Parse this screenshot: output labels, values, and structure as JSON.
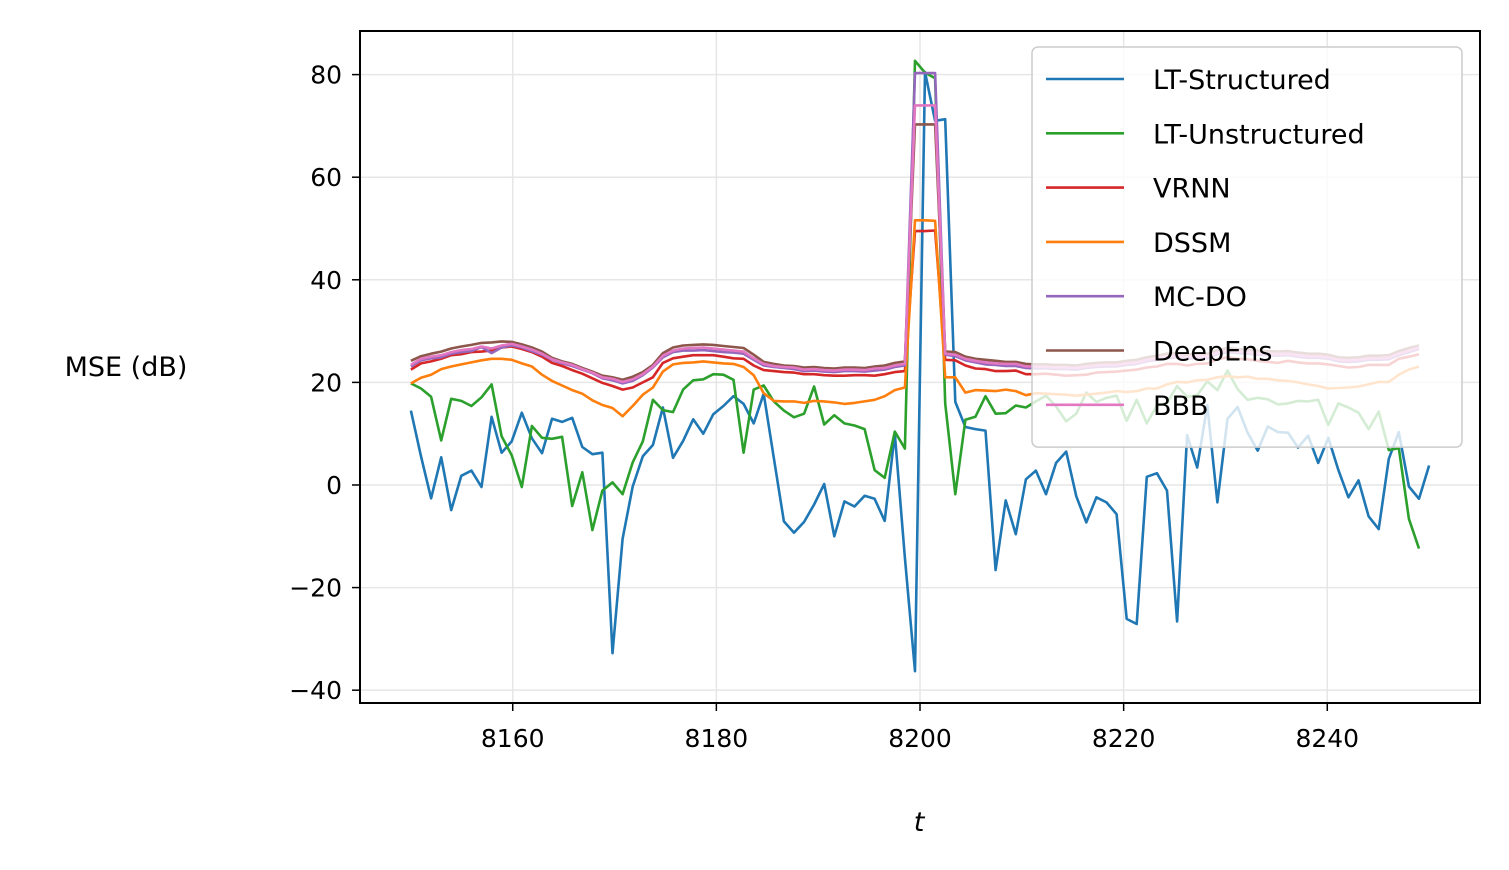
{
  "chart_data": {
    "type": "line",
    "xlabel": "t",
    "ylabel": "MSE (dB)",
    "xlim": [
      8145,
      8255
    ],
    "ylim": [
      -42.5,
      88.5
    ],
    "xticks": [
      8160,
      8180,
      8200,
      8220,
      8240
    ],
    "yticks": [
      -40,
      -20,
      0,
      20,
      40,
      60,
      80
    ],
    "xtick_labels": [
      "8160",
      "8180",
      "8200",
      "8220",
      "8240"
    ],
    "ytick_labels": [
      "−40",
      "−20",
      "0",
      "20",
      "40",
      "60",
      "80"
    ],
    "grid": true,
    "legend_position": "upper-right",
    "x_start": 8150,
    "x_end": 8250,
    "series": [
      {
        "name": "LT-Structured",
        "color": "#1f77b4",
        "values": [
          14.5,
          5.6,
          -2.6,
          5.4,
          -4.9,
          1.8,
          2.8,
          -0.4,
          13.3,
          6.3,
          8.5,
          14.1,
          9.1,
          6.2,
          12.9,
          12.3,
          13.1,
          7.4,
          6.0,
          6.3,
          -32.8,
          -10.5,
          -0.3,
          5.6,
          7.8,
          15.1,
          5.3,
          8.6,
          12.8,
          10.0,
          13.8,
          15.4,
          17.3,
          15.8,
          12.0,
          17.8,
          5.3,
          -7.1,
          -9.3,
          -7.2,
          -3.8,
          0.2,
          -10.0,
          -3.2,
          -4.2,
          -2.1,
          -2.7,
          -7.0,
          10.0,
          -14.2,
          -36.3,
          80.5,
          71.0,
          71.3,
          16.2,
          11.3,
          10.9,
          10.6,
          -16.6,
          -3.0,
          -9.6,
          1.1,
          2.8,
          -1.8,
          4.3,
          6.5,
          -2.2,
          -7.3,
          -2.4,
          -3.4,
          -5.7,
          -26.1,
          -27.1,
          1.6,
          2.3,
          -1.1,
          -26.6,
          9.7,
          3.4,
          15.6,
          -3.4,
          12.9,
          15.2,
          10.2,
          6.7,
          11.4,
          10.3,
          10.2,
          7.3,
          9.6,
          4.3,
          9.2,
          2.9,
          -2.4,
          0.9,
          -6.1,
          -8.6,
          5.1,
          10.3,
          -0.3,
          -2.7,
          3.8
        ]
      },
      {
        "name": "LT-Unstructured",
        "color": "#2ca02c",
        "values": [
          19.8,
          18.8,
          17.2,
          8.7,
          16.8,
          16.4,
          15.4,
          17.1,
          19.6,
          9.5,
          5.8,
          -0.4,
          11.5,
          9.2,
          9.0,
          9.4,
          -4.1,
          2.5,
          -8.8,
          -1.1,
          0.5,
          -1.8,
          4.4,
          8.5,
          16.6,
          14.6,
          14.2,
          18.6,
          20.4,
          20.6,
          21.6,
          21.5,
          20.5,
          6.3,
          18.6,
          19.4,
          16.3,
          14.5,
          13.2,
          13.9,
          19.2,
          11.8,
          13.6,
          12.0,
          11.6,
          10.9,
          2.9,
          1.4,
          10.4,
          7.1,
          82.7,
          80.4,
          79.3,
          15.9,
          -1.8,
          12.7,
          13.3,
          17.3,
          13.9,
          14.0,
          15.5,
          15.1,
          16.3,
          17.4,
          15.3,
          12.4,
          13.9,
          18.0,
          16.2,
          17.0,
          17.4,
          12.5,
          16.6,
          12.0,
          15.5,
          16.0,
          19.3,
          17.2,
          17.5,
          20.2,
          18.5,
          22.3,
          18.7,
          16.6,
          17.0,
          16.7,
          15.7,
          15.9,
          16.4,
          16.3,
          16.6,
          11.7,
          15.9,
          15.1,
          14.1,
          10.9,
          14.3,
          6.8,
          7.2,
          -6.6,
          -12.4
        ]
      },
      {
        "name": "VRNN",
        "color": "#d62728",
        "values": [
          22.5,
          23.7,
          24.1,
          24.6,
          25.3,
          25.5,
          25.9,
          26.0,
          26.2,
          26.8,
          27.0,
          26.5,
          25.9,
          25.0,
          23.8,
          23.2,
          22.4,
          21.7,
          20.8,
          19.9,
          19.3,
          18.6,
          19.0,
          20.0,
          21.0,
          23.8,
          24.7,
          25.0,
          25.3,
          25.3,
          25.3,
          25.0,
          24.7,
          24.6,
          23.3,
          22.4,
          22.2,
          22.0,
          21.9,
          21.6,
          21.6,
          21.4,
          21.3,
          21.3,
          21.4,
          21.4,
          21.3,
          21.6,
          22.0,
          22.2,
          49.5,
          49.5,
          49.6,
          24.4,
          24.3,
          23.3,
          22.7,
          22.6,
          22.2,
          22.2,
          22.3,
          21.6,
          21.6,
          21.7,
          21.5,
          21.3,
          21.4,
          21.5,
          21.9,
          22.0,
          22.1,
          22.3,
          22.5,
          22.9,
          23.1,
          23.6,
          23.6,
          23.3,
          23.6,
          23.7,
          24.5,
          24.9,
          24.6,
          24.5,
          24.2,
          24.0,
          23.8,
          24.2,
          23.9,
          23.7,
          23.7,
          23.5,
          23.2,
          22.9,
          23.0,
          23.4,
          23.4,
          23.4,
          24.6,
          25.0,
          25.5
        ]
      },
      {
        "name": "DSSM",
        "color": "#ff7f0e",
        "values": [
          19.8,
          20.9,
          21.5,
          22.6,
          23.1,
          23.5,
          23.9,
          24.3,
          24.6,
          24.6,
          24.4,
          23.7,
          23.1,
          21.5,
          20.3,
          19.4,
          18.5,
          17.8,
          16.5,
          15.6,
          15.0,
          13.4,
          15.4,
          17.6,
          19.0,
          22.1,
          23.5,
          23.8,
          23.9,
          24.1,
          23.9,
          23.7,
          23.6,
          23.0,
          21.4,
          17.9,
          16.4,
          16.3,
          16.3,
          16.0,
          16.4,
          16.3,
          16.1,
          15.8,
          16.0,
          16.3,
          16.6,
          17.3,
          18.5,
          19.0,
          51.6,
          51.6,
          51.5,
          21.0,
          21.0,
          18.0,
          18.5,
          18.4,
          18.3,
          18.6,
          18.3,
          17.5,
          17.9,
          17.8,
          17.7,
          17.6,
          17.4,
          17.6,
          17.8,
          18.0,
          18.3,
          18.1,
          18.3,
          18.8,
          18.8,
          19.6,
          20.1,
          20.0,
          20.4,
          20.5,
          21.0,
          21.2,
          21.0,
          21.1,
          20.7,
          20.7,
          20.4,
          20.3,
          20.0,
          19.6,
          19.3,
          18.8,
          18.9,
          19.0,
          19.2,
          19.6,
          20.1,
          20.1,
          21.5,
          22.5,
          23.1
        ]
      },
      {
        "name": "MC-DO",
        "color": "#9467bd",
        "values": [
          23.1,
          24.3,
          24.7,
          24.9,
          25.6,
          25.9,
          26.1,
          26.9,
          25.7,
          26.8,
          27.2,
          26.8,
          26.1,
          25.4,
          24.4,
          23.7,
          23.2,
          22.5,
          21.8,
          20.8,
          20.4,
          19.8,
          20.3,
          21.4,
          22.9,
          24.9,
          25.9,
          26.2,
          26.2,
          26.3,
          26.1,
          25.9,
          25.8,
          25.6,
          24.4,
          23.3,
          23.0,
          22.8,
          22.6,
          22.2,
          22.3,
          22.1,
          22.0,
          22.2,
          22.2,
          22.1,
          22.3,
          22.5,
          23.0,
          23.3,
          80.3,
          80.3,
          80.3,
          25.4,
          25.1,
          24.3,
          23.9,
          23.5,
          23.4,
          23.2,
          23.2,
          22.8,
          22.7,
          22.7,
          22.6,
          22.6,
          22.5,
          22.8,
          23.0,
          23.1,
          23.1,
          23.4,
          23.6,
          24.1,
          24.4,
          24.7,
          24.9,
          24.6,
          24.8,
          24.7,
          25.5,
          25.9,
          25.7,
          25.6,
          25.4,
          25.3,
          25.2,
          25.3,
          25.0,
          24.8,
          24.8,
          24.6,
          24.1,
          24.0,
          24.1,
          24.4,
          24.4,
          24.5,
          25.3,
          25.9,
          26.5
        ]
      },
      {
        "name": "DeepEns",
        "color": "#8c564b",
        "values": [
          24.2,
          25.1,
          25.6,
          26.0,
          26.6,
          27.0,
          27.3,
          27.7,
          27.8,
          28.0,
          27.9,
          27.4,
          26.8,
          26.0,
          24.8,
          24.1,
          23.6,
          22.8,
          22.1,
          21.3,
          21.0,
          20.5,
          21.1,
          22.0,
          23.4,
          25.7,
          26.8,
          27.2,
          27.3,
          27.4,
          27.3,
          27.1,
          26.9,
          26.7,
          25.4,
          24.0,
          23.6,
          23.3,
          23.2,
          22.9,
          23.0,
          22.8,
          22.7,
          22.9,
          22.9,
          22.8,
          23.1,
          23.3,
          23.8,
          24.1,
          70.3,
          70.3,
          70.3,
          26.0,
          25.9,
          25.0,
          24.6,
          24.4,
          24.2,
          24.0,
          24.0,
          23.6,
          23.5,
          23.5,
          23.4,
          23.4,
          23.3,
          23.6,
          23.8,
          23.9,
          23.9,
          24.2,
          24.4,
          24.9,
          25.2,
          25.6,
          25.7,
          25.4,
          25.6,
          25.6,
          26.3,
          26.7,
          26.5,
          26.4,
          26.2,
          26.1,
          26.0,
          26.1,
          25.8,
          25.6,
          25.6,
          25.4,
          24.9,
          24.8,
          24.9,
          25.2,
          25.2,
          25.3,
          26.1,
          26.7,
          27.2
        ]
      },
      {
        "name": "BBB",
        "color": "#e377c2",
        "values": [
          23.4,
          24.6,
          25.0,
          25.3,
          25.9,
          26.3,
          26.5,
          27.0,
          26.6,
          27.2,
          27.5,
          27.0,
          26.4,
          25.6,
          24.5,
          23.9,
          23.4,
          22.6,
          21.9,
          21.0,
          20.7,
          20.1,
          20.6,
          21.6,
          23.1,
          25.2,
          26.2,
          26.6,
          26.7,
          26.8,
          26.6,
          26.4,
          26.2,
          26.0,
          24.7,
          23.6,
          23.2,
          23.0,
          22.9,
          22.5,
          22.6,
          22.4,
          22.3,
          22.5,
          22.5,
          22.4,
          22.7,
          22.8,
          23.3,
          23.6,
          74.0,
          74.0,
          74.0,
          25.6,
          25.4,
          24.6,
          24.2,
          23.9,
          23.7,
          23.6,
          23.6,
          23.1,
          23.1,
          23.0,
          22.9,
          22.9,
          22.8,
          23.1,
          23.3,
          23.4,
          23.4,
          23.7,
          23.9,
          24.4,
          24.7,
          25.0,
          25.2,
          24.9,
          25.1,
          25.1,
          25.8,
          26.2,
          26.0,
          25.9,
          25.7,
          25.6,
          25.5,
          25.6,
          25.3,
          25.1,
          25.1,
          24.9,
          24.4,
          24.3,
          24.4,
          24.7,
          24.7,
          24.8,
          25.6,
          26.2,
          26.8
        ]
      }
    ]
  }
}
